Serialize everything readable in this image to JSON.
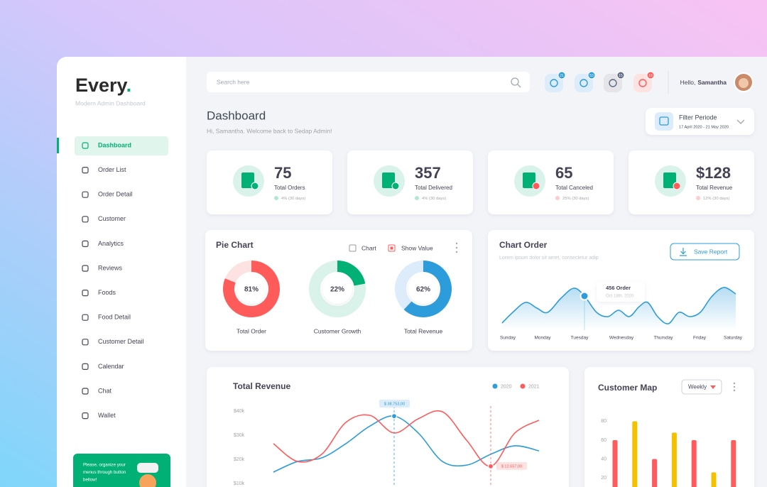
{
  "sidebar": {
    "brand": "Every",
    "brand_dot": ".",
    "tagline": "Modern Admin Dashboard",
    "menu": [
      "Dashboard",
      "Order List",
      "Order Detail",
      "Customer",
      "Analytics",
      "Reviews",
      "Foods",
      "Food Detail",
      "Customer Detail",
      "Calendar",
      "Chat",
      "Wallet"
    ],
    "promo": [
      "Please, organize your",
      "menus through button",
      "bellow!"
    ]
  },
  "header": {
    "search_placeholder": "Search here",
    "badges": [
      "21",
      "53",
      "15",
      "19"
    ],
    "greeting": "Hello,",
    "user": "Samantha"
  },
  "page": {
    "title": "Dashboard",
    "subtitle": "Hi, Samantha. Welcome back to Sedap Admin!"
  },
  "filter": {
    "label": "Filter Periode",
    "range": "17 April 2020 - 21 May 2020"
  },
  "stats": [
    {
      "value": "75",
      "label": "Total Orders",
      "change": "4% (30 days)",
      "color": "#00b074"
    },
    {
      "value": "357",
      "label": "Total Delivered",
      "change": "4% (30 days)",
      "color": "#00b074"
    },
    {
      "value": "65",
      "label": "Total Canceled",
      "change": "25% (30 days)",
      "color": "#ff5b5b"
    },
    {
      "value": "$128",
      "label": "Total Revenue",
      "change": "12% (30 days)",
      "color": "#ff5b5b"
    }
  ],
  "pie_chart": {
    "type": "pie",
    "title": "Pie Chart",
    "toggles": [
      "Chart",
      "Show Value"
    ],
    "items": [
      {
        "name": "Total Order",
        "value": 81,
        "value_label": "81%",
        "color": "#ff5b5b",
        "track": "#fde2e2"
      },
      {
        "name": "Customer Growth",
        "value": 22,
        "value_label": "22%",
        "color": "#00b074",
        "track": "#d9f3ea"
      },
      {
        "name": "Total Revenue",
        "value": 62,
        "value_label": "62%",
        "color": "#2d9cdb",
        "track": "#dcecfa"
      }
    ]
  },
  "chart_order": {
    "title": "Chart Order",
    "subtitle": "Lorem ipsum dolor sit amet, consectetur adip",
    "button": "Save Report",
    "tooltip": {
      "value": "456 Order",
      "date": "Oct 18th, 2020"
    },
    "categories": [
      "Sunday",
      "Monday",
      "Tuesday",
      "Wednesday",
      "Thursday",
      "Friday",
      "Saturday"
    ]
  },
  "total_revenue": {
    "type": "line",
    "title": "Total Revenue",
    "ylim": [
      10000,
      45000
    ],
    "yticks": [
      {
        "value": 40000,
        "label": "$40k"
      },
      {
        "value": 30000,
        "label": "$30k"
      },
      {
        "value": 20000,
        "label": "$20k"
      },
      {
        "value": 10000,
        "label": "$10k"
      }
    ],
    "grid": false,
    "series": [
      {
        "name": "2020",
        "color": "#2d9cdb",
        "values": [
          14700,
          19100,
          20600,
          26500,
          33800,
          37900,
          30900,
          19100,
          17600,
          22100,
          25600,
          23500
        ]
      },
      {
        "name": "2021",
        "color": "#ff5b5b",
        "values": [
          26500,
          19100,
          22100,
          35300,
          38200,
          30900,
          36800,
          39700,
          27900,
          17100,
          30900,
          36200
        ]
      }
    ],
    "annotations": [
      "$ 38.753,00",
      "$ 12.657,00"
    ]
  },
  "customer_map": {
    "type": "bar",
    "title": "Customer Map",
    "dropdown": "Weekly",
    "ylim": [
      0,
      90
    ],
    "yticks": [
      80,
      60,
      40,
      20
    ],
    "grid": false,
    "values": [
      60,
      80,
      40,
      68,
      60,
      26,
      60
    ],
    "colors": [
      "#ff5b5b",
      "#f5c000",
      "#ff5b5b",
      "#f5c000",
      "#ff5b5b",
      "#f5c000",
      "#ff5b5b"
    ]
  }
}
